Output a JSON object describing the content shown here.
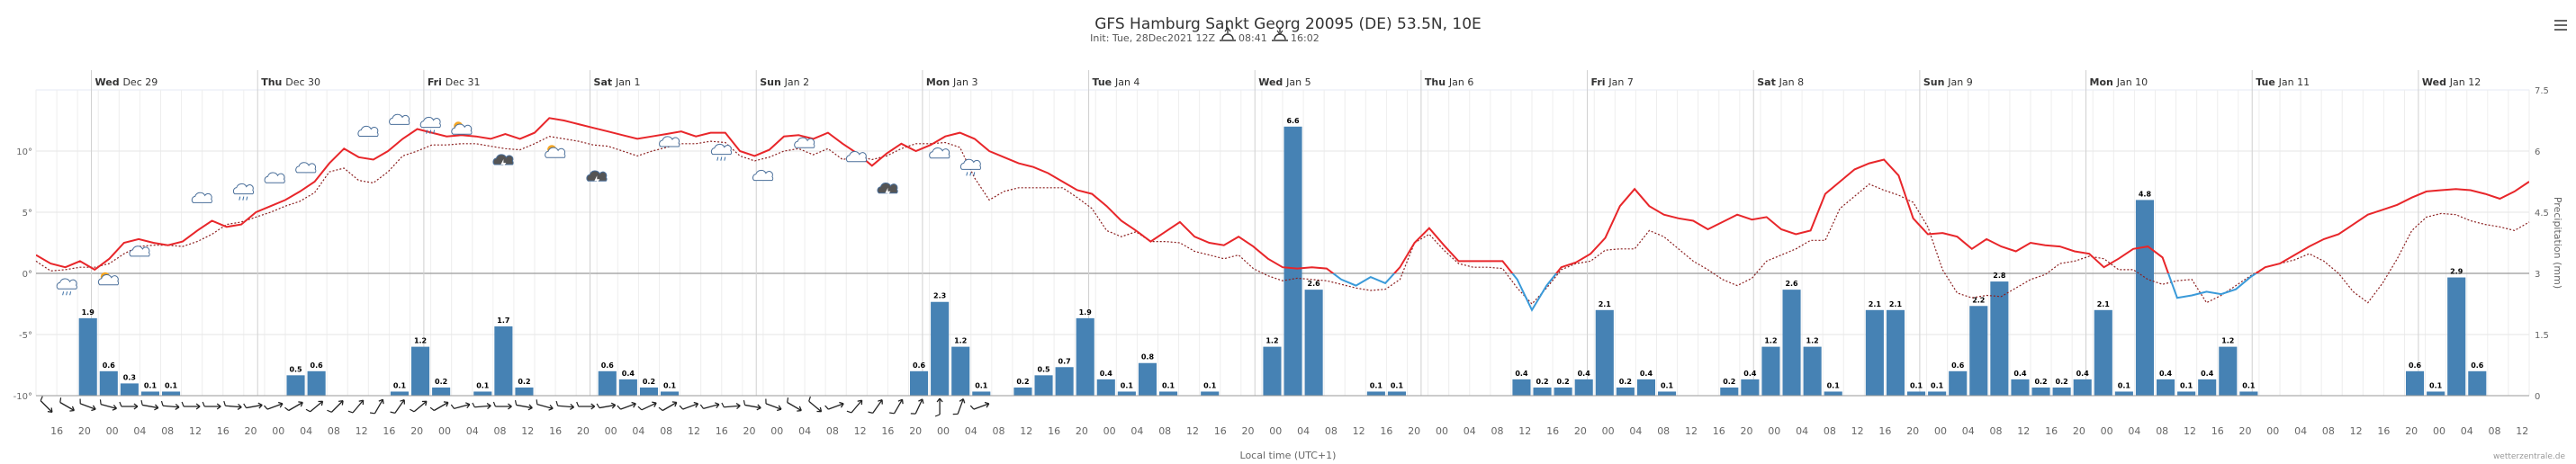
{
  "header": {
    "title": "GFS Hamburg Sankt Georg 20095 (DE) 53.5N, 10E",
    "init": "Init: Tue, 28Dec2021 12Z",
    "sunrise": "08:41",
    "sunset": "16:02"
  },
  "menu": {
    "icon": "hamburger-menu-icon"
  },
  "credit": "wetterzentrale.de",
  "chart_data": {
    "type": "line+bar",
    "x_axis_label": "Local time (UTC+1)",
    "y_left_label": "",
    "y_right_label": "Precipitation (mm)",
    "x_start_hour": 13,
    "x_step_hours": 3,
    "day_labels": [
      {
        "day": "Wed",
        "date": "Dec 29"
      },
      {
        "day": "Thu",
        "date": "Dec 30"
      },
      {
        "day": "Fri",
        "date": "Dec 31"
      },
      {
        "day": "Sat",
        "date": "Jan 1"
      },
      {
        "day": "Sun",
        "date": "Jan 2"
      },
      {
        "day": "Mon",
        "date": "Jan 3"
      },
      {
        "day": "Tue",
        "date": "Jan 4"
      },
      {
        "day": "Wed",
        "date": "Jan 5"
      },
      {
        "day": "Thu",
        "date": "Jan 6"
      },
      {
        "day": "Fri",
        "date": "Jan 7"
      },
      {
        "day": "Sat",
        "date": "Jan 8"
      },
      {
        "day": "Sun",
        "date": "Jan 9"
      },
      {
        "day": "Mon",
        "date": "Jan 10"
      },
      {
        "day": "Tue",
        "date": "Jan 11"
      },
      {
        "day": "Wed",
        "date": "Jan 12"
      }
    ],
    "hour_ticks": [
      "16",
      "20",
      "00",
      "04",
      "08",
      "12"
    ],
    "y_left_ticks": [
      "-10°",
      "-5°",
      "0°",
      "5°",
      "10°"
    ],
    "y_left_range": [
      -10,
      15
    ],
    "y_right_ticks": [
      "0",
      "1.5",
      "3",
      "4.5",
      "6",
      "7.5"
    ],
    "y_right_range": [
      0,
      7.5
    ],
    "series": [
      {
        "name": "Temperature (°C)",
        "color": "#e8262a",
        "cold_color": "#3a9ad9",
        "style": "solid",
        "values": [
          1.5,
          0.8,
          0.5,
          1.0,
          0.3,
          1.2,
          2.5,
          2.8,
          2.5,
          2.3,
          2.6,
          3.5,
          4.3,
          3.8,
          4.0,
          5.0,
          5.5,
          6.0,
          6.7,
          7.5,
          9.0,
          10.2,
          9.5,
          9.3,
          10.0,
          11.0,
          11.8,
          11.5,
          11.2,
          11.3,
          11.2,
          11.0,
          11.4,
          11.0,
          11.5,
          12.7,
          12.5,
          12.2,
          11.9,
          11.6,
          11.3,
          11.0,
          11.2,
          11.4,
          11.6,
          11.2,
          11.5,
          11.5,
          10.0,
          9.6,
          10.1,
          11.2,
          11.3,
          11.0,
          11.5,
          10.6,
          9.8,
          8.8,
          9.8,
          10.6,
          10.0,
          10.5,
          11.2,
          11.5,
          11.0,
          10.0,
          9.5,
          9.0,
          8.7,
          8.2,
          7.5,
          6.8,
          6.5,
          5.5,
          4.3,
          3.5,
          2.6,
          3.4,
          4.2,
          3.0,
          2.5,
          2.3,
          3.0,
          2.2,
          1.2,
          0.5,
          0.4,
          0.5,
          0.4,
          -0.5,
          -1.0,
          -0.3,
          -0.8,
          0.5,
          2.5,
          3.7,
          2.3,
          1.0,
          1.0,
          1.0,
          1.0,
          -0.5,
          -3.0,
          -1.0,
          0.5,
          0.9,
          1.6,
          2.9,
          5.5,
          6.9,
          5.5,
          4.8,
          4.5,
          4.3,
          3.6,
          4.2,
          4.8,
          4.4,
          4.6,
          3.6,
          3.2,
          3.5,
          6.5,
          7.5,
          8.5,
          9.0,
          9.3,
          8.0,
          4.5,
          3.2,
          3.3,
          3.0,
          2.0,
          2.8,
          2.2,
          1.8,
          2.5,
          2.3,
          2.2,
          1.8,
          1.6,
          0.5,
          1.2,
          2.0,
          2.2,
          1.3,
          -2.0,
          -1.8,
          -1.5,
          -1.7,
          -1.3,
          -0.3,
          0.5,
          0.8,
          1.5,
          2.2,
          2.8,
          3.2,
          4.0,
          4.8,
          5.2,
          5.6,
          6.2,
          6.7,
          6.8,
          6.9,
          6.8,
          6.5,
          6.1,
          6.7,
          7.5
        ]
      },
      {
        "name": "Dew point (°C)",
        "color": "#8b1f1f",
        "style": "dotted",
        "values": [
          1.0,
          0.2,
          0.3,
          0.5,
          0.5,
          0.8,
          1.6,
          2.2,
          2.3,
          2.3,
          2.2,
          2.6,
          3.2,
          4.0,
          4.2,
          4.6,
          5.0,
          5.5,
          5.9,
          6.6,
          8.3,
          8.6,
          7.6,
          7.4,
          8.3,
          9.6,
          10.0,
          10.5,
          10.5,
          10.6,
          10.6,
          10.4,
          10.2,
          10.1,
          10.6,
          11.2,
          11.0,
          10.8,
          10.5,
          10.4,
          10.0,
          9.6,
          10.0,
          10.3,
          10.6,
          10.6,
          10.8,
          10.7,
          9.6,
          9.2,
          9.5,
          10.0,
          10.2,
          9.7,
          10.2,
          9.3,
          9.6,
          9.3,
          9.6,
          10.2,
          10.6,
          10.6,
          10.7,
          10.3,
          7.8,
          6.0,
          6.7,
          7.0,
          7.0,
          7.0,
          7.0,
          6.2,
          5.3,
          3.5,
          3.0,
          3.4,
          2.6,
          2.6,
          2.5,
          1.8,
          1.5,
          1.2,
          1.5,
          0.4,
          -0.2,
          -0.6,
          -0.4,
          -0.5,
          -0.6,
          -0.9,
          -1.2,
          -1.4,
          -1.3,
          -0.5,
          2.5,
          3.2,
          1.9,
          0.8,
          0.5,
          0.5,
          0.4,
          -1.2,
          -2.5,
          -1.2,
          0.3,
          0.8,
          1.0,
          1.9,
          2.0,
          2.0,
          3.5,
          3.0,
          2.0,
          1.0,
          0.3,
          -0.5,
          -1.0,
          -0.4,
          1.0,
          1.5,
          2.0,
          2.7,
          2.7,
          5.3,
          6.3,
          7.3,
          6.8,
          6.4,
          5.8,
          3.8,
          0.3,
          -1.6,
          -2.0,
          -1.8,
          -1.9,
          -1.2,
          -0.5,
          -0.1,
          0.8,
          1.0,
          1.4,
          1.2,
          0.3,
          0.3,
          -0.5,
          -0.9,
          -0.6,
          -0.5,
          -2.4,
          -1.8,
          -1.0,
          -0.2,
          0.5,
          0.8,
          1.1,
          1.6,
          1.0,
          0.0,
          -1.5,
          -2.4,
          -0.8,
          1.2,
          3.5,
          4.6,
          4.9,
          4.8,
          4.3,
          4.0,
          3.8,
          3.5,
          4.2
        ]
      }
    ],
    "precip_bars": [
      {
        "x": 2,
        "v": 1.9
      },
      {
        "x": 3,
        "v": 0.6
      },
      {
        "x": 4,
        "v": 0.3
      },
      {
        "x": 5,
        "v": 0.1
      },
      {
        "x": 6,
        "v": 0.1
      },
      {
        "x": 12,
        "v": 0.5
      },
      {
        "x": 13,
        "v": 0.6
      },
      {
        "x": 17,
        "v": 0.1
      },
      {
        "x": 18,
        "v": 1.2
      },
      {
        "x": 19,
        "v": 0.2
      },
      {
        "x": 21,
        "v": 0.1
      },
      {
        "x": 22,
        "v": 1.7
      },
      {
        "x": 23,
        "v": 0.2
      },
      {
        "x": 27,
        "v": 0.6
      },
      {
        "x": 28,
        "v": 0.4
      },
      {
        "x": 29,
        "v": 0.2
      },
      {
        "x": 30,
        "v": 0.1
      },
      {
        "x": 42,
        "v": 0.6
      },
      {
        "x": 43,
        "v": 2.3
      },
      {
        "x": 44,
        "v": 1.2
      },
      {
        "x": 45,
        "v": 0.1
      },
      {
        "x": 47,
        "v": 0.2
      },
      {
        "x": 48,
        "v": 0.5
      },
      {
        "x": 49,
        "v": 0.7
      },
      {
        "x": 50,
        "v": 1.9
      },
      {
        "x": 51,
        "v": 0.4
      },
      {
        "x": 52,
        "v": 0.1
      },
      {
        "x": 53,
        "v": 0.8
      },
      {
        "x": 54,
        "v": 0.1
      },
      {
        "x": 56,
        "v": 0.1
      },
      {
        "x": 59,
        "v": 1.2
      },
      {
        "x": 60,
        "v": 6.6
      },
      {
        "x": 61,
        "v": 2.6
      },
      {
        "x": 64,
        "v": 0.1
      },
      {
        "x": 65,
        "v": 0.1
      },
      {
        "x": 71,
        "v": 0.4
      },
      {
        "x": 72,
        "v": 0.2
      },
      {
        "x": 73,
        "v": 0.2
      },
      {
        "x": 74,
        "v": 0.4
      },
      {
        "x": 75,
        "v": 2.1
      },
      {
        "x": 76,
        "v": 0.2
      },
      {
        "x": 77,
        "v": 0.4
      },
      {
        "x": 78,
        "v": 0.1
      },
      {
        "x": 81,
        "v": 0.2
      },
      {
        "x": 82,
        "v": 0.4
      },
      {
        "x": 83,
        "v": 1.2
      },
      {
        "x": 84,
        "v": 2.6
      },
      {
        "x": 85,
        "v": 1.2
      },
      {
        "x": 86,
        "v": 0.1
      },
      {
        "x": 88,
        "v": 2.1
      },
      {
        "x": 89,
        "v": 2.1
      },
      {
        "x": 90,
        "v": 0.1
      },
      {
        "x": 91,
        "v": 0.1
      },
      {
        "x": 92,
        "v": 0.6
      },
      {
        "x": 93,
        "v": 2.2
      },
      {
        "x": 94,
        "v": 2.8
      },
      {
        "x": 95,
        "v": 0.4
      },
      {
        "x": 96,
        "v": 0.2
      },
      {
        "x": 97,
        "v": 0.2
      },
      {
        "x": 98,
        "v": 0.4
      },
      {
        "x": 99,
        "v": 2.1
      },
      {
        "x": 100,
        "v": 0.1
      },
      {
        "x": 101,
        "v": 4.8
      },
      {
        "x": 102,
        "v": 0.4
      },
      {
        "x": 103,
        "v": 0.1
      },
      {
        "x": 104,
        "v": 0.4
      },
      {
        "x": 105,
        "v": 1.2
      },
      {
        "x": 106,
        "v": 0.1
      },
      {
        "x": 114,
        "v": 0.6
      },
      {
        "x": 115,
        "v": 0.1
      },
      {
        "x": 116,
        "v": 2.9
      },
      {
        "x": 117,
        "v": 0.6
      }
    ],
    "wind_dirs_deg": [
      315,
      300,
      290,
      285,
      270,
      280,
      275,
      270,
      270,
      275,
      260,
      250,
      240,
      230,
      225,
      220,
      210,
      215,
      230,
      240,
      255,
      265,
      270,
      280,
      285,
      275,
      270,
      260,
      250,
      245,
      240,
      250,
      255,
      265,
      280,
      290,
      300,
      310,
      250,
      220,
      215,
      210,
      205,
      180,
      200,
      250
    ]
  }
}
